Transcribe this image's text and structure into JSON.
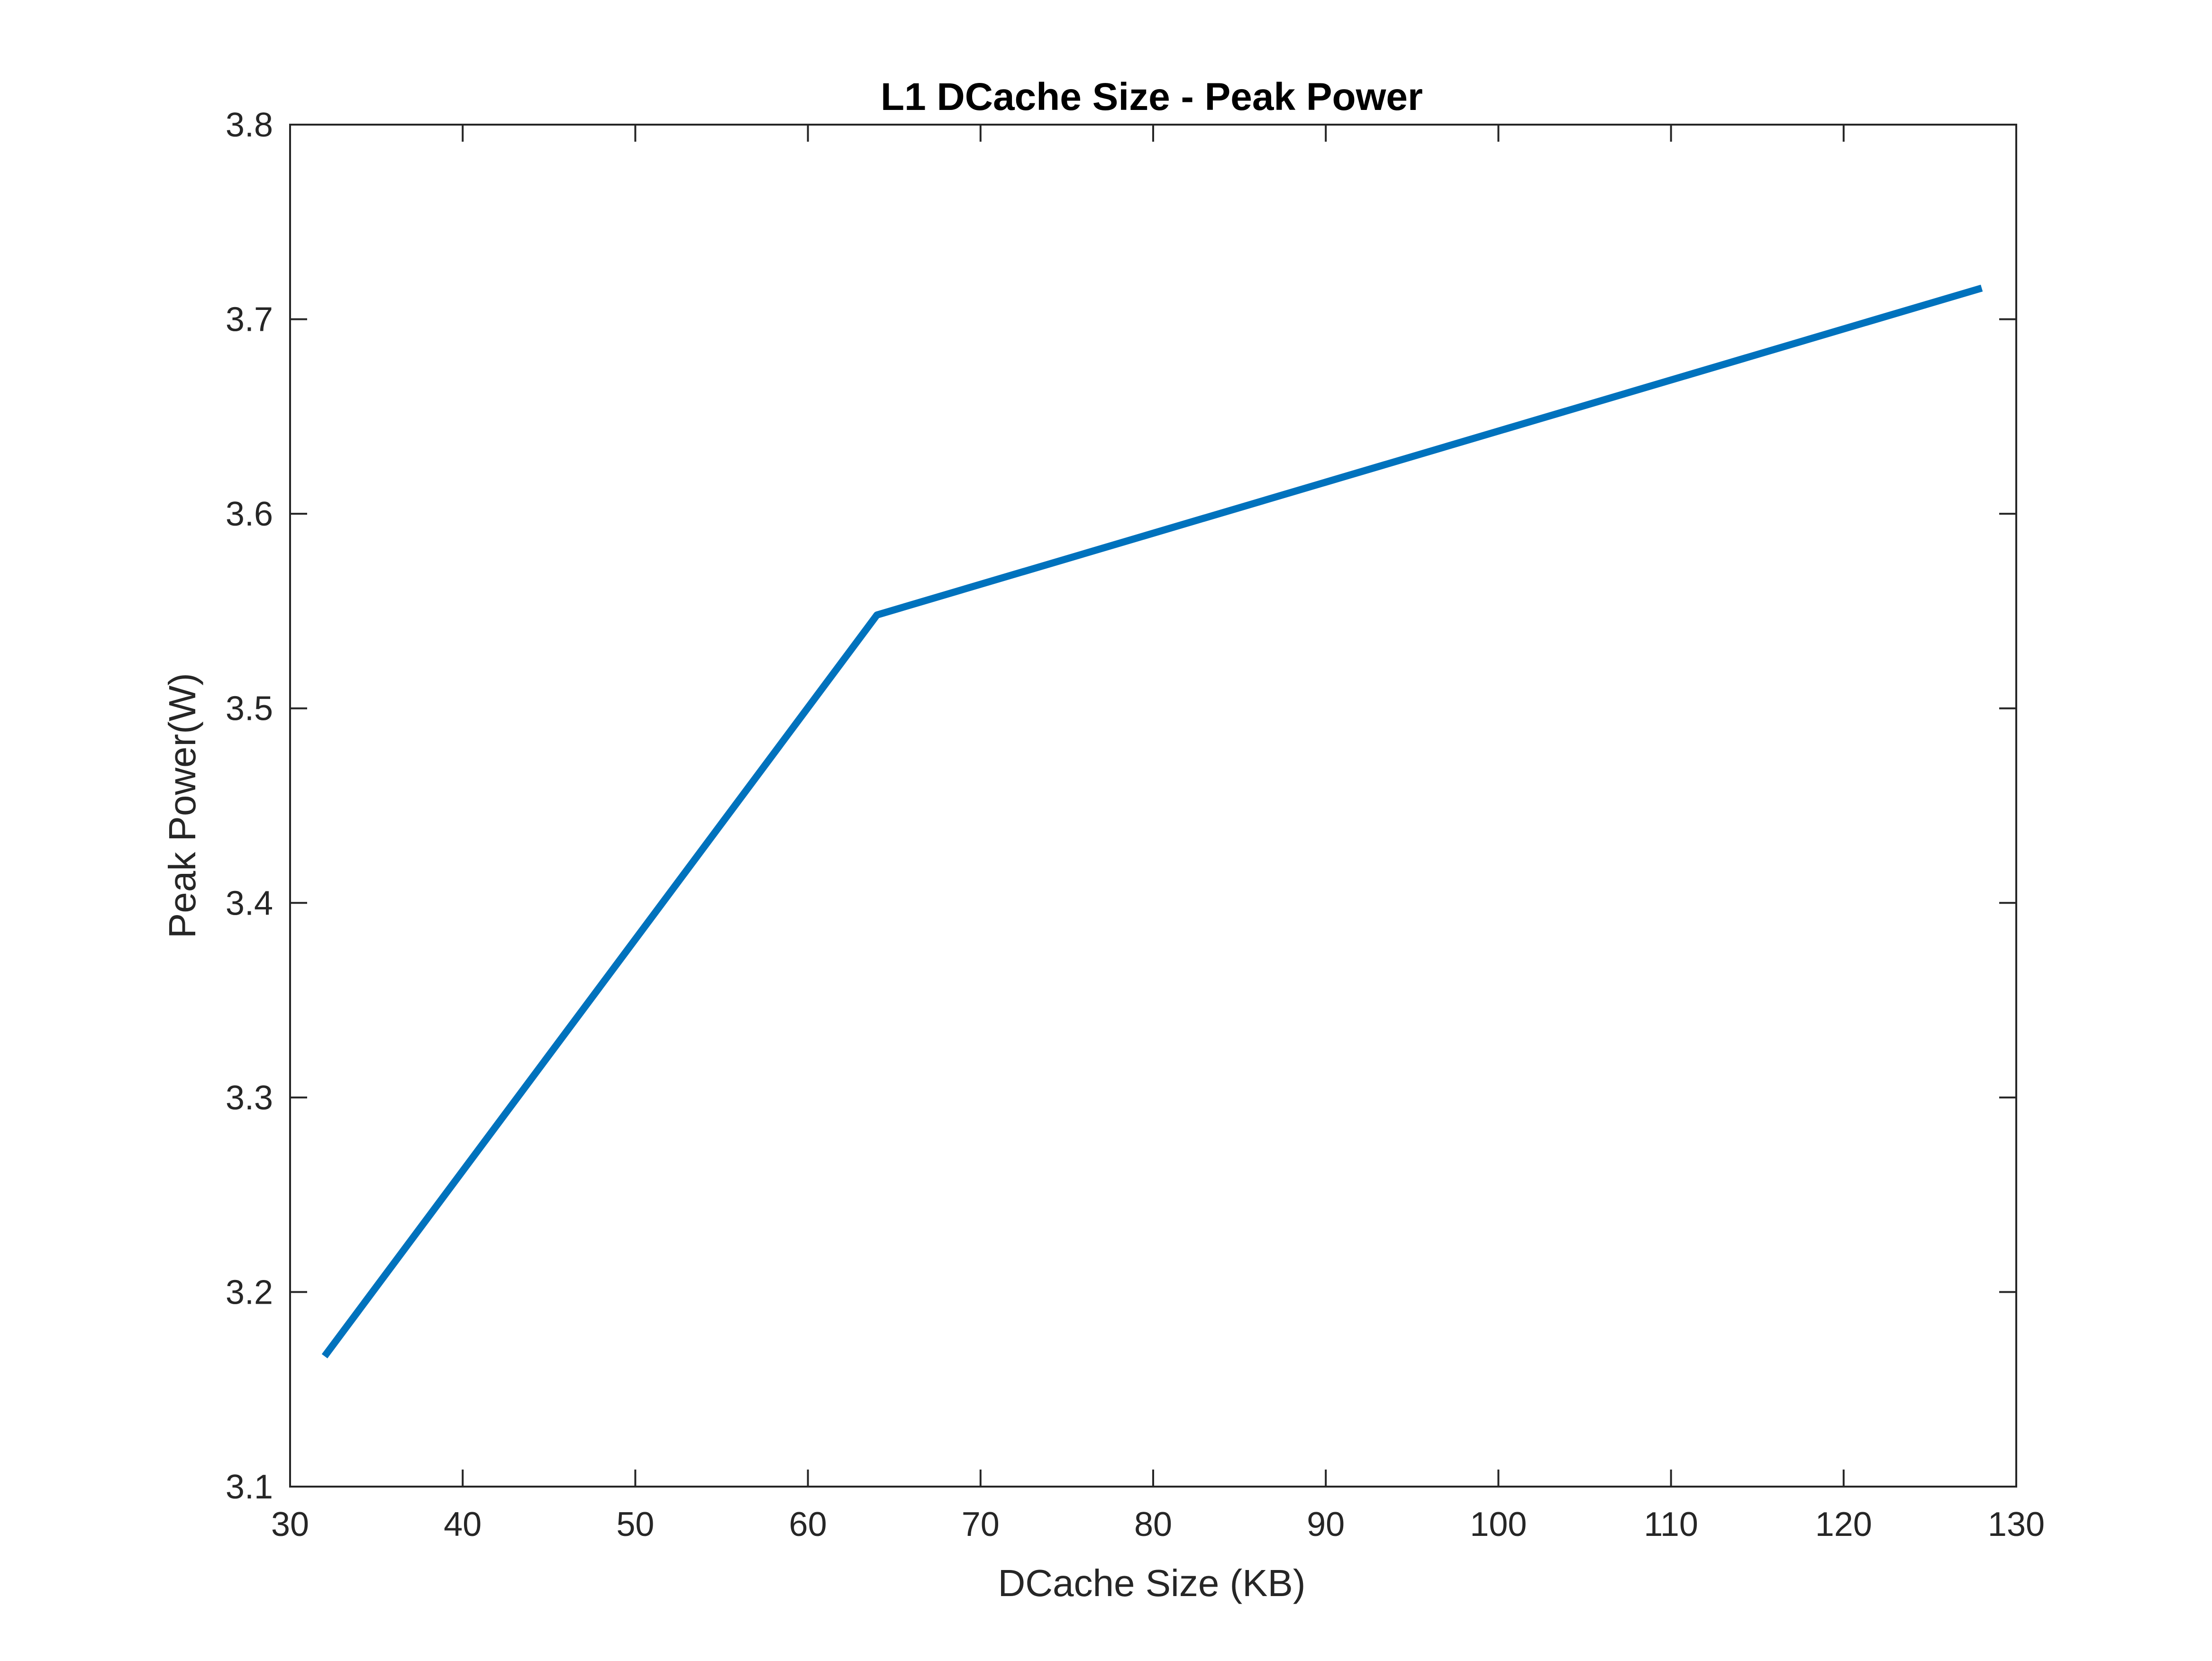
{
  "chart_data": {
    "type": "line",
    "title": "L1 DCache Size - Peak Power",
    "xlabel": "DCache Size (KB)",
    "ylabel": "Peak Power(W)",
    "xlim": [
      30,
      130
    ],
    "ylim": [
      3.1,
      3.8
    ],
    "xticks": [
      "30",
      "40",
      "50",
      "60",
      "70",
      "80",
      "90",
      "100",
      "110",
      "120",
      "130"
    ],
    "yticks": [
      "3.1",
      "3.2",
      "3.3",
      "3.4",
      "3.5",
      "3.6",
      "3.7",
      "3.8"
    ],
    "grid": false,
    "legend": "none",
    "series": [
      {
        "color": "#0072BD",
        "x": [
          32,
          64,
          128
        ],
        "y": [
          3.167,
          3.548,
          3.716
        ]
      }
    ]
  }
}
